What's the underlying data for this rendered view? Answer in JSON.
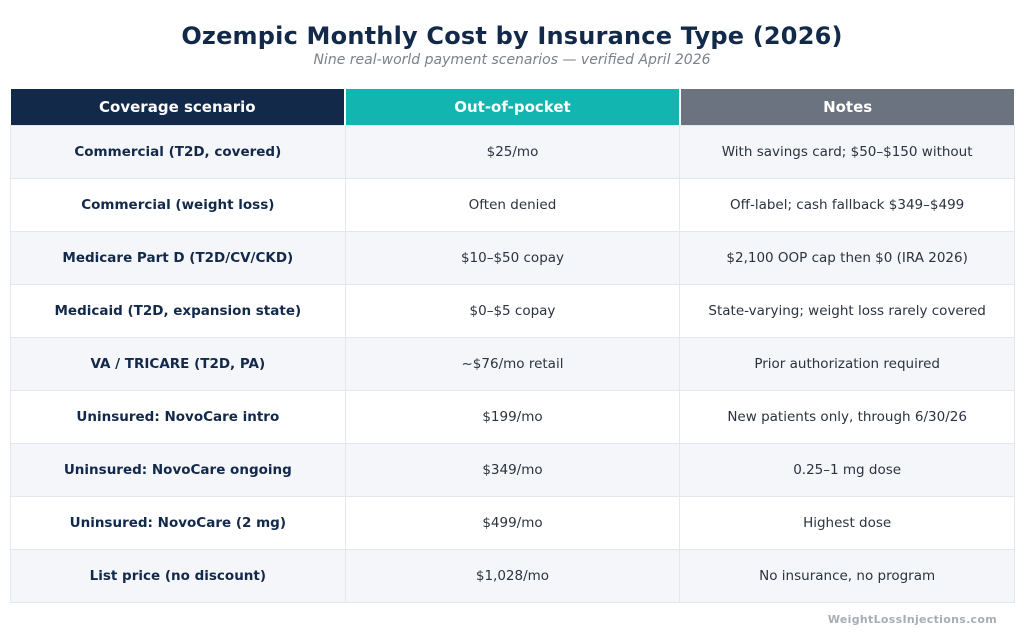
{
  "header": {
    "title": "Ozempic Monthly Cost by Insurance Type (2026)",
    "subtitle": "Nine real-world payment scenarios — verified April 2026"
  },
  "colors": {
    "header_col1": "#12294a",
    "header_col2": "#13b5b1",
    "header_col3": "#6b7280"
  },
  "chart_data": {
    "type": "table",
    "title": "Ozempic Monthly Cost by Insurance Type (2026)",
    "subtitle": "Nine real-world payment scenarios — verified April 2026",
    "columns": [
      "Coverage scenario",
      "Out-of-pocket",
      "Notes"
    ],
    "rows": [
      [
        "Commercial (T2D, covered)",
        "$25/mo",
        "With savings card; $50–$150 without"
      ],
      [
        "Commercial (weight loss)",
        "Often denied",
        "Off-label; cash fallback $349–$499"
      ],
      [
        "Medicare Part D (T2D/CV/CKD)",
        "$10–$50 copay",
        "$2,100 OOP cap then $0 (IRA 2026)"
      ],
      [
        "Medicaid (T2D, expansion state)",
        "$0–$5 copay",
        "State-varying; weight loss rarely covered"
      ],
      [
        "VA / TRICARE (T2D, PA)",
        "~$76/mo retail",
        "Prior authorization required"
      ],
      [
        "Uninsured: NovoCare intro",
        "$199/mo",
        "New patients only, through 6/30/26"
      ],
      [
        "Uninsured: NovoCare ongoing",
        "$349/mo",
        "0.25–1 mg dose"
      ],
      [
        "Uninsured: NovoCare (2 mg)",
        "$499/mo",
        "Highest dose"
      ],
      [
        "List price (no discount)",
        "$1,028/mo",
        "No insurance, no program"
      ]
    ]
  },
  "footer": {
    "source": "WeightLossInjections.com"
  }
}
